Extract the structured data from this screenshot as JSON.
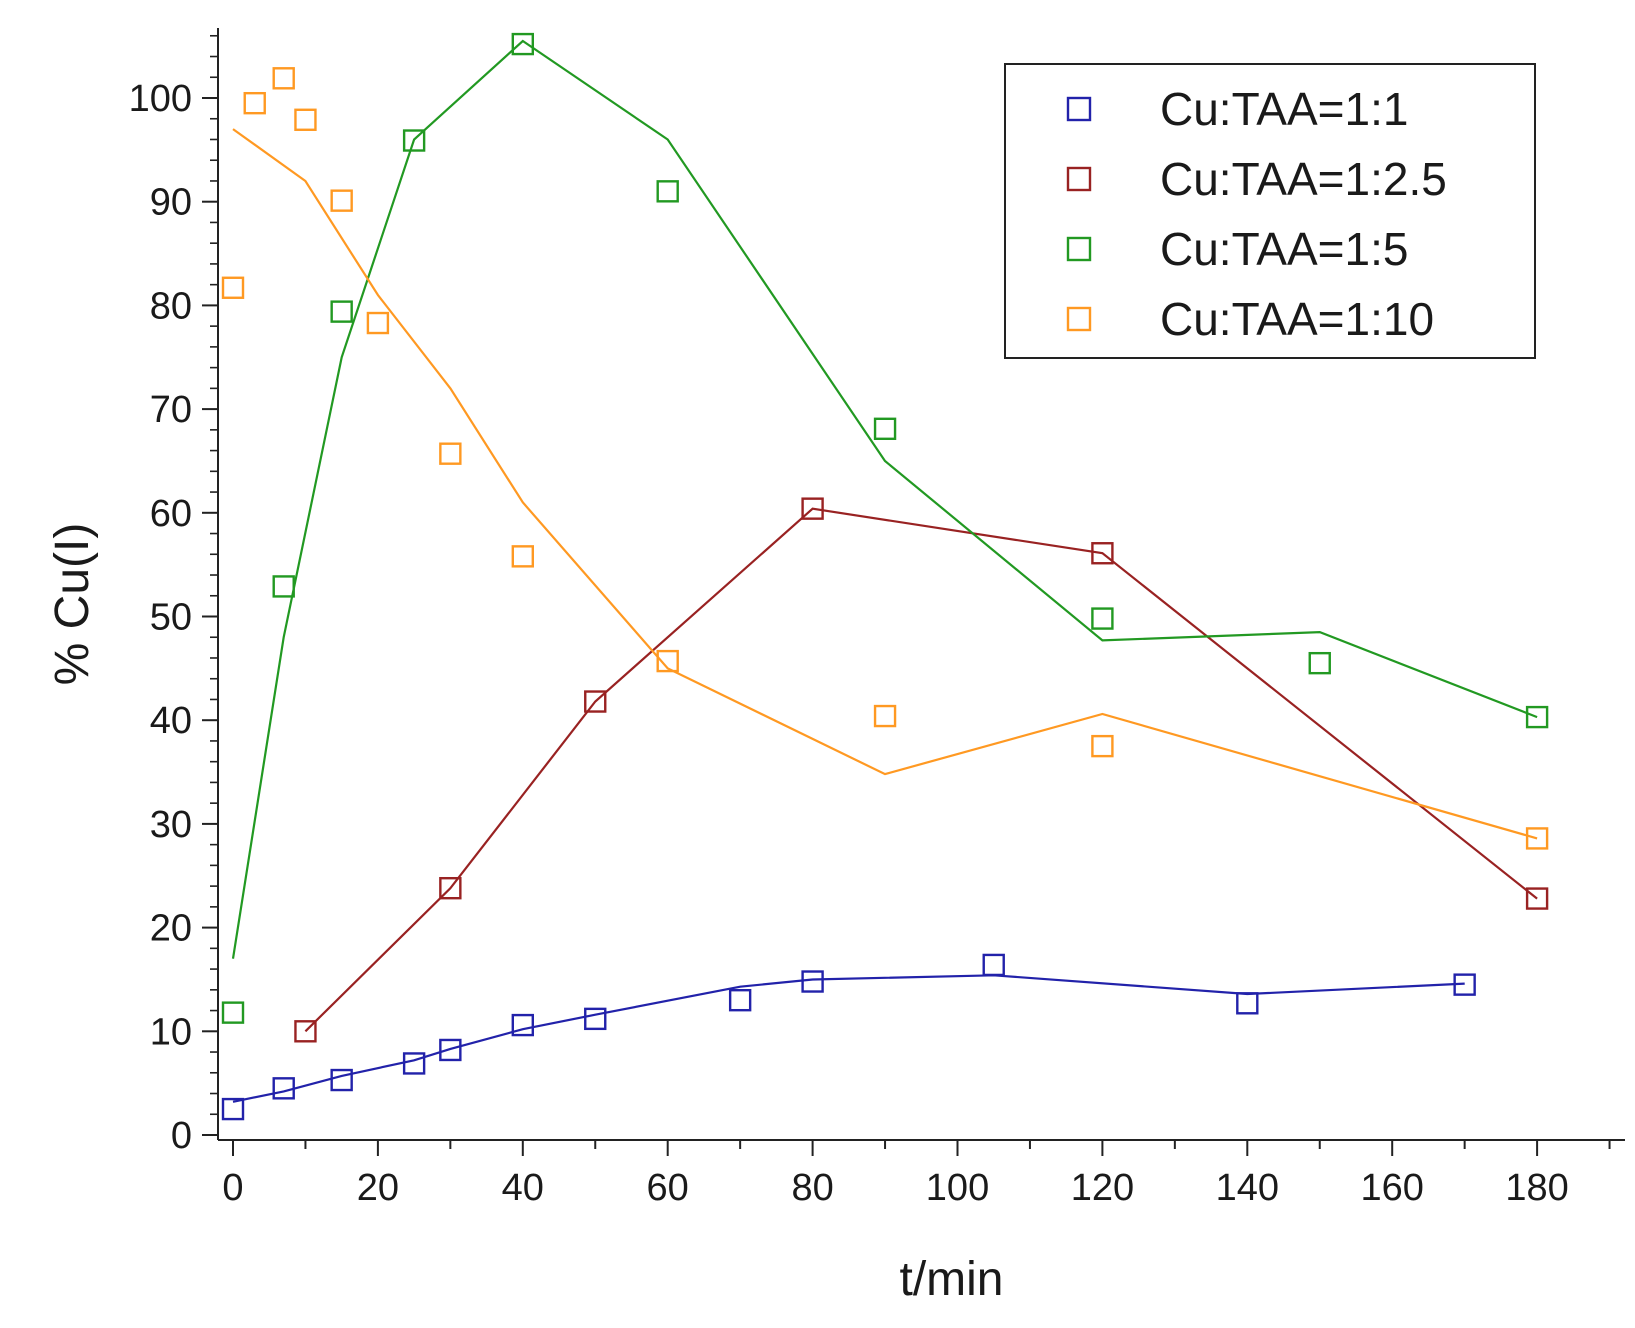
{
  "chart_data": {
    "type": "scatter",
    "title": "",
    "xlabel": "t/min",
    "ylabel": "% Cu(I)",
    "xlim": [
      -1,
      190
    ],
    "ylim": [
      0,
      107
    ],
    "x_ticks": [
      0,
      20,
      40,
      60,
      80,
      100,
      120,
      140,
      160,
      180
    ],
    "y_ticks": [
      0,
      10,
      20,
      30,
      40,
      50,
      60,
      70,
      80,
      90,
      100
    ],
    "x_tick_labels": [
      "0",
      "20",
      "40",
      "60",
      "80",
      "100",
      "120",
      "140",
      "160",
      "180"
    ],
    "y_tick_labels": [
      "0",
      "10",
      "20",
      "30",
      "40",
      "50",
      "60",
      "70",
      "80",
      "90",
      "100"
    ],
    "legend_position": "top-right",
    "grid": false,
    "series": [
      {
        "name": "Cu:TAA=1:1",
        "color": "#2222aa",
        "points": [
          [
            0,
            2.5
          ],
          [
            7,
            4.5
          ],
          [
            15,
            5.3
          ],
          [
            25,
            6.9
          ],
          [
            30,
            8.2
          ],
          [
            40,
            10.6
          ],
          [
            50,
            11.2
          ],
          [
            70,
            13.0
          ],
          [
            80,
            14.8
          ],
          [
            105,
            16.4
          ],
          [
            140,
            12.7
          ],
          [
            170,
            14.5
          ]
        ],
        "fit": [
          [
            0,
            3.2
          ],
          [
            7,
            4.2
          ],
          [
            15,
            5.7
          ],
          [
            25,
            7.2
          ],
          [
            30,
            8.3
          ],
          [
            40,
            10.2
          ],
          [
            50,
            11.6
          ],
          [
            70,
            14.3
          ],
          [
            80,
            15.0
          ],
          [
            105,
            15.4
          ],
          [
            140,
            13.6
          ],
          [
            170,
            14.6
          ]
        ]
      },
      {
        "name": "Cu:TAA=1:2.5",
        "color": "#992222",
        "points": [
          [
            10,
            10.0
          ],
          [
            30,
            23.8
          ],
          [
            50,
            41.8
          ],
          [
            80,
            60.4
          ],
          [
            120,
            56.1
          ],
          [
            180,
            22.8
          ]
        ],
        "fit": [
          [
            10,
            10.0
          ],
          [
            30,
            23.8
          ],
          [
            50,
            41.8
          ],
          [
            80,
            60.4
          ],
          [
            120,
            56.1
          ],
          [
            180,
            22.8
          ]
        ]
      },
      {
        "name": "Cu:TAA=1:5",
        "color": "#229922",
        "points": [
          [
            0,
            11.8
          ],
          [
            7,
            52.9
          ],
          [
            15,
            79.4
          ],
          [
            25,
            95.9
          ],
          [
            40,
            105.2
          ],
          [
            60,
            91.0
          ],
          [
            90,
            68.1
          ],
          [
            120,
            49.8
          ],
          [
            150,
            45.5
          ],
          [
            180,
            40.3
          ]
        ],
        "fit": [
          [
            0,
            17.0
          ],
          [
            7,
            48.0
          ],
          [
            15,
            75.0
          ],
          [
            25,
            96.0
          ],
          [
            40,
            105.5
          ],
          [
            60,
            96.0
          ],
          [
            90,
            65.0
          ],
          [
            120,
            47.7
          ],
          [
            150,
            48.5
          ],
          [
            180,
            40.3
          ]
        ]
      },
      {
        "name": "Cu:TAA=1:10",
        "color": "#ff9922",
        "points": [
          [
            0,
            81.7
          ],
          [
            3,
            99.5
          ],
          [
            7,
            101.9
          ],
          [
            10,
            97.9
          ],
          [
            15,
            90.1
          ],
          [
            20,
            78.3
          ],
          [
            30,
            65.7
          ],
          [
            40,
            55.8
          ],
          [
            60,
            45.7
          ],
          [
            90,
            40.4
          ],
          [
            120,
            37.5
          ],
          [
            180,
            28.6
          ]
        ],
        "fit": [
          [
            0,
            97.0
          ],
          [
            10,
            92.0
          ],
          [
            20,
            81.0
          ],
          [
            30,
            72.0
          ],
          [
            40,
            61.0
          ],
          [
            60,
            45.0
          ],
          [
            90,
            34.8
          ],
          [
            120,
            40.6
          ],
          [
            180,
            28.6
          ]
        ]
      }
    ]
  }
}
